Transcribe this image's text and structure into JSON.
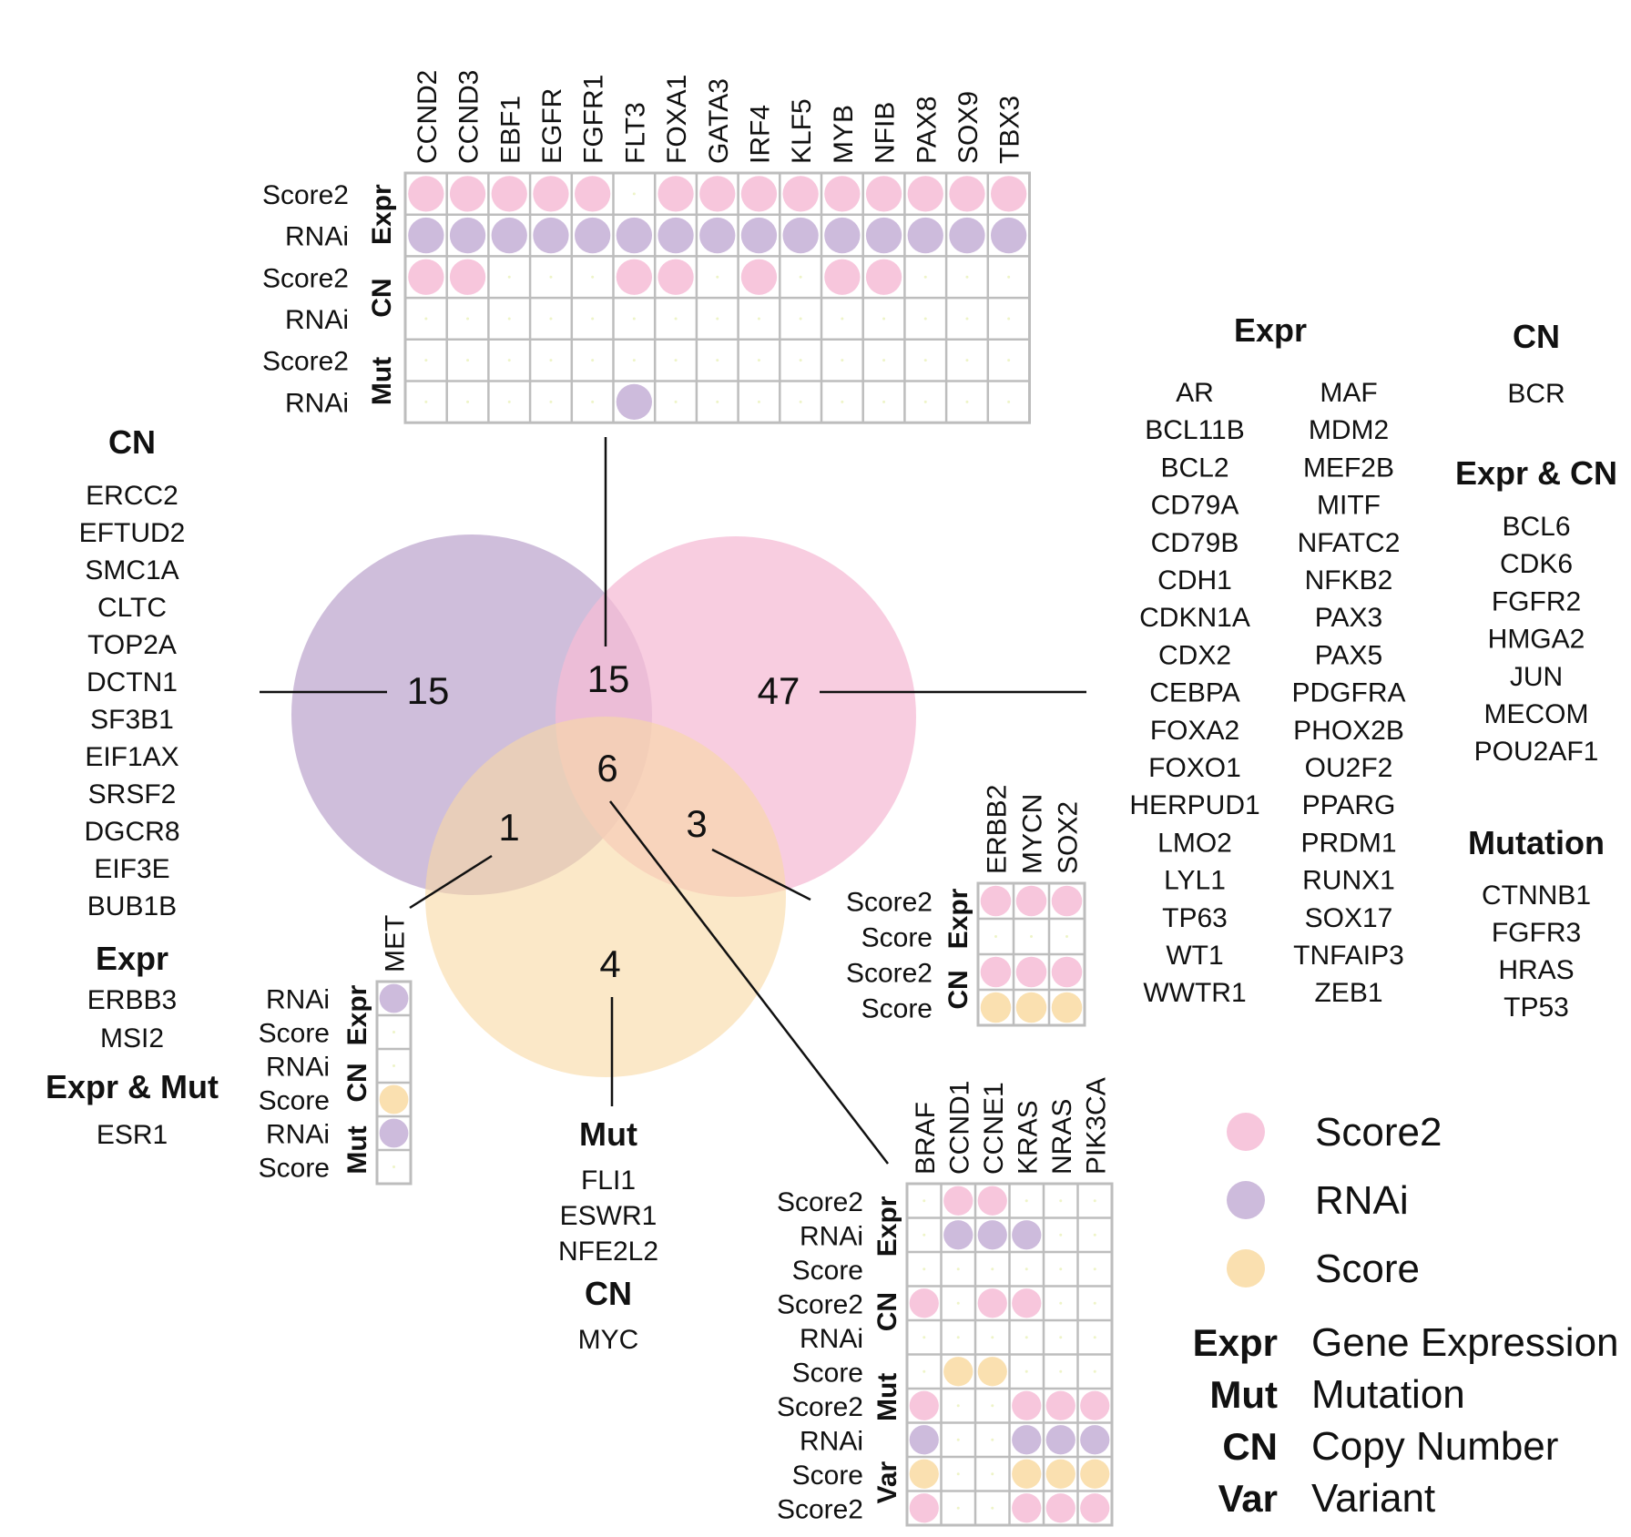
{
  "colors": {
    "Score2": "#f7c6dc",
    "RNAi": "#cdbbdc",
    "Score": "#fae0b0",
    "grid": "#bdbdbd",
    "venn_rnai": "#c7b3d5",
    "venn_score2": "#f6bcd6",
    "venn_score": "#f9d9a3"
  },
  "venn": {
    "counts": {
      "rnai_only": "15",
      "rnai_score2": "15",
      "score2_only": "47",
      "all_three": "6",
      "rnai_score": "1",
      "score2_score": "3",
      "score_only": "4"
    }
  },
  "top_matrix": {
    "genes": [
      "CCND2",
      "CCND3",
      "EBF1",
      "EGFR",
      "FGFR1",
      "FLT3",
      "FOXA1",
      "GATA3",
      "IRF4",
      "KLF5",
      "MYB",
      "NFIB",
      "PAX8",
      "SOX9",
      "TBX3"
    ],
    "rows": [
      {
        "label": "Score2",
        "color": "Score2",
        "hits": [
          1,
          1,
          1,
          1,
          1,
          0,
          1,
          1,
          1,
          1,
          1,
          1,
          1,
          1,
          1
        ]
      },
      {
        "label": "RNAi",
        "color": "RNAi",
        "hits": [
          1,
          1,
          1,
          1,
          1,
          1,
          1,
          1,
          1,
          1,
          1,
          1,
          1,
          1,
          1
        ]
      },
      {
        "label": "Score2",
        "color": "Score2",
        "hits": [
          1,
          1,
          0,
          0,
          0,
          1,
          1,
          0,
          1,
          0,
          1,
          1,
          0,
          0,
          0
        ]
      },
      {
        "label": "RNAi",
        "color": "RNAi",
        "hits": [
          0,
          0,
          0,
          0,
          0,
          0,
          0,
          0,
          0,
          0,
          0,
          0,
          0,
          0,
          0
        ]
      },
      {
        "label": "Score2",
        "color": "Score2",
        "hits": [
          0,
          0,
          0,
          0,
          0,
          0,
          0,
          0,
          0,
          0,
          0,
          0,
          0,
          0,
          0
        ]
      },
      {
        "label": "RNAi",
        "color": "RNAi",
        "hits": [
          0,
          0,
          0,
          0,
          0,
          1,
          0,
          0,
          0,
          0,
          0,
          0,
          0,
          0,
          0
        ]
      }
    ],
    "groups": [
      "Expr",
      "CN",
      "Mut"
    ]
  },
  "met_matrix": {
    "genes": [
      "MET"
    ],
    "rows": [
      {
        "label": "RNAi",
        "color": "RNAi",
        "hits": [
          1
        ]
      },
      {
        "label": "Score",
        "color": "Score",
        "hits": [
          0
        ]
      },
      {
        "label": "RNAi",
        "color": "RNAi",
        "hits": [
          0
        ]
      },
      {
        "label": "Score",
        "color": "Score",
        "hits": [
          1
        ]
      },
      {
        "label": "RNAi",
        "color": "RNAi",
        "hits": [
          1
        ]
      },
      {
        "label": "Score",
        "color": "Score",
        "hits": [
          0
        ]
      }
    ],
    "groups": [
      "Expr",
      "CN",
      "Mut"
    ]
  },
  "erbb2_matrix": {
    "genes": [
      "ERBB2",
      "MYCN",
      "SOX2"
    ],
    "rows": [
      {
        "label": "Score2",
        "color": "Score2",
        "hits": [
          1,
          1,
          1
        ]
      },
      {
        "label": "Score",
        "color": "Score",
        "hits": [
          0,
          0,
          0
        ]
      },
      {
        "label": "Score2",
        "color": "Score2",
        "hits": [
          1,
          1,
          1
        ]
      },
      {
        "label": "Score",
        "color": "Score",
        "hits": [
          1,
          1,
          1
        ]
      }
    ],
    "groups": [
      "Expr",
      "CN"
    ]
  },
  "braf_matrix": {
    "genes": [
      "BRAF",
      "CCND1",
      "CCNE1",
      "KRAS",
      "NRAS",
      "PIK3CA"
    ],
    "rows": [
      {
        "label": "Score2",
        "color": "Score2",
        "hits": [
          0,
          1,
          1,
          0,
          0,
          0
        ]
      },
      {
        "label": "RNAi",
        "color": "RNAi",
        "hits": [
          0,
          1,
          1,
          1,
          0,
          0
        ]
      },
      {
        "label": "Score",
        "color": "Score",
        "hits": [
          0,
          0,
          0,
          0,
          0,
          0
        ]
      },
      {
        "label": "Score2",
        "color": "Score2",
        "hits": [
          1,
          0,
          1,
          1,
          0,
          0
        ]
      },
      {
        "label": "RNAi",
        "color": "RNAi",
        "hits": [
          0,
          0,
          0,
          0,
          0,
          0
        ]
      },
      {
        "label": "Score",
        "color": "Score",
        "hits": [
          0,
          1,
          1,
          0,
          0,
          0
        ]
      },
      {
        "label": "Score2",
        "color": "Score2",
        "hits": [
          1,
          0,
          0,
          1,
          1,
          1
        ]
      },
      {
        "label": "RNAi",
        "color": "RNAi",
        "hits": [
          1,
          0,
          0,
          1,
          1,
          1
        ]
      },
      {
        "label": "Score",
        "color": "Score",
        "hits": [
          1,
          0,
          0,
          1,
          1,
          1
        ]
      },
      {
        "label": "Score2",
        "color": "Score2",
        "hits": [
          1,
          0,
          0,
          1,
          1,
          1
        ]
      }
    ],
    "groups": [
      "Expr",
      "CN",
      "Mut",
      "Var"
    ]
  },
  "left_lists": {
    "cn_title": "CN",
    "cn_genes": [
      "ERCC2",
      "EFTUD2",
      "SMC1A",
      "CLTC",
      "TOP2A",
      "DCTN1",
      "SF3B1",
      "EIF1AX",
      "SRSF2",
      "DGCR8",
      "EIF3E",
      "BUB1B"
    ],
    "expr_title": "Expr",
    "expr_genes": [
      "ERBB3",
      "MSI2"
    ],
    "exprmut_title": "Expr & Mut",
    "exprmut_genes": [
      "ESR1"
    ]
  },
  "bottom_lists": {
    "mut_title": "Mut",
    "mut_genes": [
      "FLI1",
      "ESWR1",
      "NFE2L2"
    ],
    "cn_title": "CN",
    "cn_genes": [
      "MYC"
    ]
  },
  "right_lists": {
    "expr_title": "Expr",
    "expr_col1": [
      "AR",
      "BCL11B",
      "BCL2",
      "CD79A",
      "CD79B",
      "CDH1",
      "CDKN1A",
      "CDX2",
      "CEBPA",
      "FOXA2",
      "FOXO1",
      "HERPUD1",
      "LMO2",
      "LYL1",
      "TP63",
      "WT1",
      "WWTR1"
    ],
    "expr_col2": [
      "MAF",
      "MDM2",
      "MEF2B",
      "MITF",
      "NFATC2",
      "NFKB2",
      "PAX3",
      "PAX5",
      "PDGFRA",
      "PHOX2B",
      "OU2F2",
      "PPARG",
      "PRDM1",
      "RUNX1",
      "SOX17",
      "TNFAIP3",
      "ZEB1"
    ],
    "cn_title": "CN",
    "cn_genes": [
      "BCR"
    ],
    "exprcn_title": "Expr & CN",
    "exprcn_genes": [
      "BCL6",
      "CDK6",
      "FGFR2",
      "HMGA2",
      "JUN",
      "MECOM",
      "POU2AF1"
    ],
    "mutation_title": "Mutation",
    "mutation_genes": [
      "CTNNB1",
      "FGFR3",
      "HRAS",
      "TP53"
    ]
  },
  "legend": {
    "items": [
      {
        "label": "Score2",
        "color": "Score2"
      },
      {
        "label": "RNAi",
        "color": "RNAi"
      },
      {
        "label": "Score",
        "color": "Score"
      }
    ],
    "abbrevs": [
      {
        "key": "Expr",
        "text": "Gene Expression"
      },
      {
        "key": "Mut",
        "text": "Mutation"
      },
      {
        "key": "CN",
        "text": "Copy Number"
      },
      {
        "key": "Var",
        "text": "Variant"
      }
    ]
  }
}
